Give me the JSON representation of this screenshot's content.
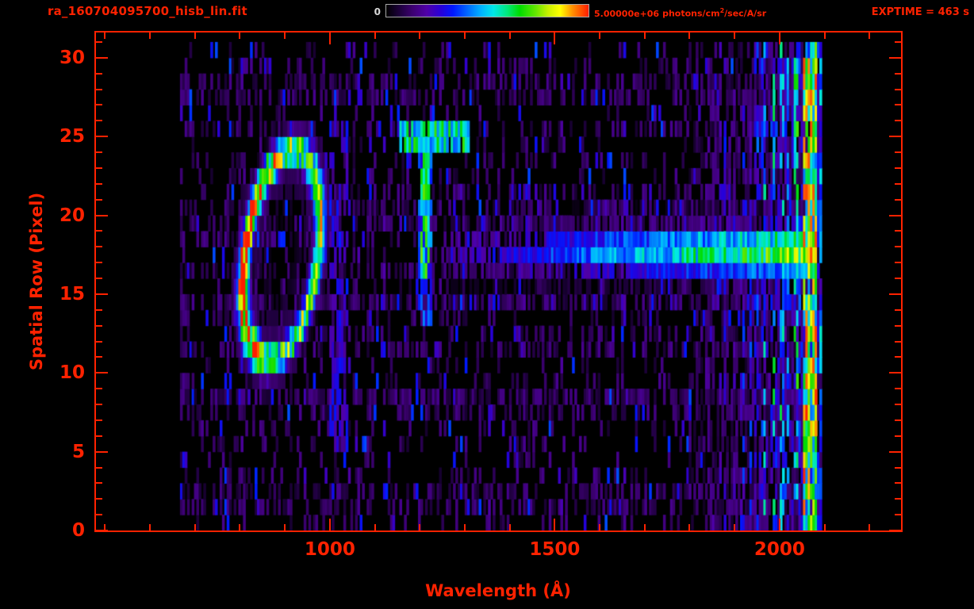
{
  "colors": {
    "accent": "#ff2200",
    "secondary_text": "#d8d8d8",
    "background": "#000000"
  },
  "header": {
    "title": "ra_160704095700_hisb_lin.fit",
    "exptime": "EXPTIME = 463 s"
  },
  "colorbar": {
    "min_label": "0",
    "max_label": "5.00000e+06",
    "unit_pre": "photons/cm",
    "unit_sup": "2",
    "unit_post": "/sec/A/sr"
  },
  "chart_data": {
    "type": "heatmap",
    "title": "ra_160704095700_hisb_lin.fit",
    "xlabel": "Wavelength (Å)",
    "ylabel": "Spatial Row (Pixel)",
    "x_range": [
      480,
      2270
    ],
    "y_range": [
      0,
      31.6
    ],
    "x_ticks": [
      1000,
      1500,
      2000
    ],
    "x_minor": [
      500,
      2250,
      100
    ],
    "y_ticks": [
      0,
      5,
      10,
      15,
      20,
      25,
      30
    ],
    "y_minor_step": 1,
    "scale_min": 0,
    "scale_max": 5000000,
    "scale_units": "photons/cm2/sec/A/sr",
    "exposure_seconds": 463,
    "data_extent_wavelength": [
      665,
      2092
    ],
    "data_extent_rows": [
      0,
      30
    ],
    "grid": false,
    "legend": "colorbar-top",
    "colormap_stops": [
      [
        0.0,
        "#000000"
      ],
      [
        0.05,
        "#16002e"
      ],
      [
        0.13,
        "#3c0071"
      ],
      [
        0.2,
        "#5000a8"
      ],
      [
        0.27,
        "#2800d8"
      ],
      [
        0.33,
        "#0018ff"
      ],
      [
        0.4,
        "#0066ff"
      ],
      [
        0.47,
        "#00b4ff"
      ],
      [
        0.53,
        "#00e8e8"
      ],
      [
        0.6,
        "#00e87a"
      ],
      [
        0.66,
        "#00dc00"
      ],
      [
        0.74,
        "#66e800"
      ],
      [
        0.8,
        "#c8f000"
      ],
      [
        0.86,
        "#ffff00"
      ],
      [
        0.92,
        "#ff9100"
      ],
      [
        1.0,
        "#ff1e00"
      ]
    ],
    "background_noise": {
      "density": 0.5,
      "low": 0.05,
      "high": 0.17,
      "blue_fraction": 0.04,
      "stripe_boost": 1.9
    },
    "features": [
      {
        "id": "airglow-ring",
        "type": "ring",
        "center_wavelength": 893,
        "center_row": 17,
        "semi_axis_wavelength": 82,
        "semi_axis_rows": 6.7,
        "tilt": 4,
        "ring_width": 0.16,
        "peak": 0.8,
        "left_boost": 0.45
      },
      {
        "id": "ring-right-vertical-streak",
        "type": "vstreak",
        "wavelength": [
          998,
          1042
        ],
        "rows": [
          4.5,
          25
        ],
        "value": 0.26,
        "patchiness": 0.55
      },
      {
        "id": "lyman-alpha-emission-line",
        "type": "vstreak",
        "wavelength": [
          1196,
          1228
        ],
        "rows": [
          12.5,
          24.5
        ],
        "value": 0.36,
        "patchiness": 0.3,
        "core": {
          "wavelength": [
            1202,
            1222
          ],
          "rows": [
            16,
            23
          ],
          "value": 0.6
        }
      },
      {
        "id": "upper-cyan-streak",
        "type": "hstreak",
        "wavelength": [
          1152,
          1308
        ],
        "rows": [
          23.8,
          25.2
        ],
        "value": 0.55,
        "patchiness": 0.15
      },
      {
        "id": "stellar-continuum-band",
        "type": "band",
        "wavelength": [
          1268,
          2085
        ],
        "rows_center": 17.2,
        "rows_sigma": 1.15,
        "value_start": 0.2,
        "value_end": 0.74,
        "halo_rows": 4,
        "halo_chance": 0.1,
        "halo_value": 0.24
      },
      {
        "id": "detector-right-noise",
        "type": "noise-region",
        "wavelength": [
          1800,
          2092
        ],
        "max_extra": 0.55
      },
      {
        "id": "bright-edge-line",
        "type": "vstreak",
        "wavelength": [
          2052,
          2082
        ],
        "rows": [
          0,
          30.9
        ],
        "value": 0.58,
        "patchiness": 0.12,
        "jitter": 0.5,
        "red_speck_chance": 0.05
      }
    ],
    "render": {
      "columns": 345,
      "seed": 20160704
    }
  }
}
